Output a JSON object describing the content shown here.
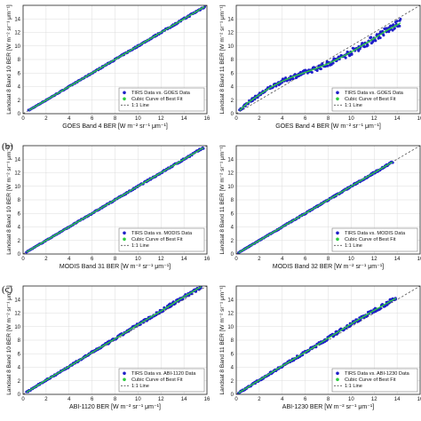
{
  "figure_labels": [
    "(b)",
    "(c)"
  ],
  "chart_data": [
    {
      "type": "scatter",
      "panel": 1,
      "xlabel": "GOES Band 4 BER [W m⁻² sr⁻¹ μm⁻¹]",
      "ylabel": "Landsat 8 Band 10 BER [W m⁻² sr⁻¹ μm⁻¹]",
      "xlim": [
        0,
        16
      ],
      "ylim": [
        0,
        16
      ],
      "xticks": [
        "0",
        "2",
        "4",
        "6",
        "8",
        "10",
        "12",
        "14",
        "16"
      ],
      "yticks": [
        "0",
        "2",
        "4",
        "6",
        "8",
        "10",
        "12",
        "14"
      ],
      "legend": {
        "position": "bottom-right",
        "entries": [
          "TIRS Data vs. GOES Data",
          "Cubic Curve of Best Fit",
          "1:1 Line"
        ]
      },
      "fit": {
        "x": [
          0.5,
          2,
          4,
          6,
          8,
          10,
          12,
          14,
          15.8
        ],
        "y": [
          0.5,
          2,
          4,
          6,
          8,
          10,
          12,
          14,
          15.8
        ]
      },
      "spread": 0.1,
      "oneone": [
        0,
        16
      ]
    },
    {
      "type": "scatter",
      "panel": 2,
      "xlabel": "GOES Band 4 BER [W m⁻² sr⁻¹ μm⁻¹]",
      "ylabel": "Landsat 8 Band 11 BER [W m⁻² sr⁻¹ μm⁻¹]",
      "xlim": [
        0,
        16
      ],
      "ylim": [
        0,
        16
      ],
      "xticks": [
        "0",
        "2",
        "4",
        "6",
        "8",
        "10",
        "12",
        "14",
        "16"
      ],
      "yticks": [
        "0",
        "2",
        "4",
        "6",
        "8",
        "10",
        "12",
        "14"
      ],
      "legend": {
        "position": "bottom-right",
        "entries": [
          "TIRS Data vs. GOES Data",
          "Cubic Curve of Best Fit",
          "1:1 Line"
        ]
      },
      "fit": {
        "x": [
          0.3,
          1,
          2,
          3,
          4,
          5,
          6,
          7,
          8,
          9,
          10,
          11,
          12,
          13,
          14.3
        ],
        "y": [
          0.5,
          1.6,
          2.8,
          3.9,
          4.8,
          5.5,
          6.1,
          6.7,
          7.4,
          8.2,
          9.1,
          10.1,
          11.1,
          12.2,
          13.4
        ]
      },
      "spread": 0.45,
      "oneone": [
        0,
        16
      ]
    },
    {
      "type": "scatter",
      "panel": 3,
      "xlabel": "MODIS Band 31 BER [W m⁻² sr⁻¹ μm⁻¹]",
      "ylabel": "Landsat 8 Band 10 BER [W m⁻² sr⁻¹ μm⁻¹]",
      "xlim": [
        0,
        16
      ],
      "ylim": [
        0,
        16
      ],
      "xticks": [
        "0",
        "2",
        "4",
        "6",
        "8",
        "10",
        "12",
        "14",
        "16"
      ],
      "yticks": [
        "0",
        "2",
        "4",
        "6",
        "8",
        "10",
        "12",
        "14"
      ],
      "legend": {
        "position": "bottom-right",
        "entries": [
          "TIRS Data vs. MODIS Data",
          "Cubic Curve of Best Fit",
          "1:1 Line"
        ]
      },
      "fit": {
        "x": [
          0.3,
          2,
          4,
          6,
          8,
          10,
          12,
          14,
          15.7
        ],
        "y": [
          0.3,
          2,
          4,
          6,
          8,
          10,
          12,
          14,
          15.7
        ]
      },
      "spread": 0.1,
      "oneone": [
        0,
        16
      ]
    },
    {
      "type": "scatter",
      "panel": 4,
      "xlabel": "MODIS Band 32 BER [W m⁻² sr⁻¹ μm⁻¹]",
      "ylabel": "Landsat 8 Band 11 BER [W m⁻² sr⁻¹ μm⁻¹]",
      "xlim": [
        0,
        16
      ],
      "ylim": [
        0,
        16
      ],
      "xticks": [
        "0",
        "2",
        "4",
        "6",
        "8",
        "10",
        "12",
        "14",
        "16"
      ],
      "yticks": [
        "0",
        "2",
        "4",
        "6",
        "8",
        "10",
        "12",
        "14"
      ],
      "legend": {
        "position": "bottom-right",
        "entries": [
          "TIRS Data vs. MODIS Data",
          "Cubic Curve of Best Fit",
          "1:1 Line"
        ]
      },
      "fit": {
        "x": [
          0.2,
          2,
          4,
          6,
          8,
          10,
          12,
          13.6
        ],
        "y": [
          0.2,
          2,
          4,
          6,
          8,
          10,
          12,
          13.6
        ]
      },
      "spread": 0.12,
      "oneone": [
        0,
        16
      ]
    },
    {
      "type": "scatter",
      "panel": 5,
      "xlabel": "ABI-1120 BER [W m⁻² sr⁻¹ μm⁻¹]",
      "ylabel": "Landsat 8 Band 10 BER [W m⁻² sr⁻¹ μm⁻¹]",
      "xlim": [
        0,
        16
      ],
      "ylim": [
        0,
        16
      ],
      "xticks": [
        "0",
        "2",
        "4",
        "6",
        "8",
        "10",
        "12",
        "14",
        "16"
      ],
      "yticks": [
        "0",
        "2",
        "4",
        "6",
        "8",
        "10",
        "12",
        "14"
      ],
      "legend": {
        "position": "bottom-right",
        "entries": [
          "TIRS Data vs. ABI-1120 Data",
          "Cubic Curve of Best Fit",
          "1:1 Line"
        ]
      },
      "fit": {
        "x": [
          0.3,
          2,
          4,
          6,
          8,
          10,
          12,
          14,
          15.5
        ],
        "y": [
          0.3,
          2.1,
          4.1,
          6.2,
          8.2,
          10.3,
          12.3,
          14.4,
          15.9
        ]
      },
      "spread": 0.2,
      "oneone": [
        0,
        16
      ]
    },
    {
      "type": "scatter",
      "panel": 6,
      "xlabel": "ABI-1230 BER [W m⁻² sr⁻¹ μm⁻¹]",
      "ylabel": "Landsat 8 Band 11 BER [W m⁻² sr⁻¹ μm⁻¹]",
      "xlim": [
        0,
        16
      ],
      "ylim": [
        0,
        16
      ],
      "xticks": [
        "0",
        "2",
        "4",
        "6",
        "8",
        "10",
        "12",
        "14",
        "16"
      ],
      "yticks": [
        "0",
        "2",
        "4",
        "6",
        "8",
        "10",
        "12",
        "14"
      ],
      "legend": {
        "position": "bottom-right",
        "entries": [
          "TIRS Data vs. ABI-1230 Data",
          "Cubic Curve of Best Fit",
          "1:1 Line"
        ]
      },
      "fit": {
        "x": [
          0.2,
          2,
          4,
          6,
          8,
          10,
          12,
          13.9
        ],
        "y": [
          0.2,
          2.1,
          4.2,
          6.2,
          8.3,
          10.4,
          12.4,
          14.2
        ]
      },
      "spread": 0.25,
      "oneone": [
        0,
        16
      ]
    }
  ]
}
